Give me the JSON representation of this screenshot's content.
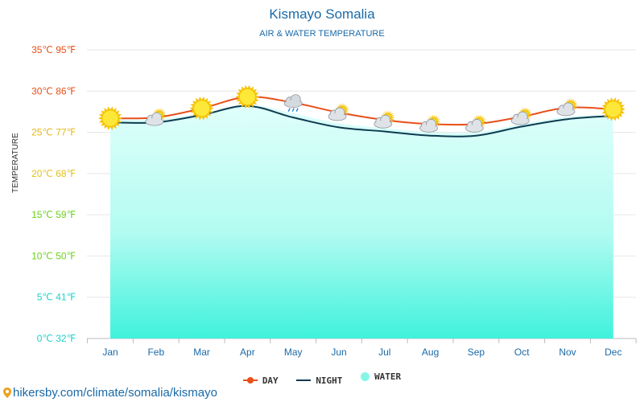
{
  "title": "Kismayo Somalia",
  "subtitle": "AIR & WATER TEMPERATURE",
  "ylabel": "TEMPERATURE",
  "watermark": "hikersby.com/climate/somalia/kismayo",
  "legend": [
    {
      "key": "day",
      "label": "DAY",
      "color": "#e8501a"
    },
    {
      "key": "night",
      "label": "NIGHT",
      "color": "#0d3b4f"
    },
    {
      "key": "water",
      "label": "WATER",
      "color": "#86f5e8"
    }
  ],
  "chart_data": {
    "type": "line",
    "categories": [
      "Jan",
      "Feb",
      "Mar",
      "Apr",
      "May",
      "Jun",
      "Jul",
      "Aug",
      "Sep",
      "Oct",
      "Nov",
      "Dec"
    ],
    "series": [
      {
        "name": "DAY",
        "values": [
          26.7,
          26.8,
          27.9,
          29.3,
          28.6,
          27.4,
          26.5,
          26.0,
          26.0,
          26.9,
          28.0,
          27.8
        ],
        "color": "#e8501a"
      },
      {
        "name": "NIGHT",
        "values": [
          26.2,
          26.2,
          27.1,
          28.2,
          26.8,
          25.6,
          25.1,
          24.6,
          24.6,
          25.7,
          26.6,
          27.0
        ],
        "color": "#0d3b4f"
      },
      {
        "name": "WATER",
        "values": [
          26.6,
          26.6,
          27.3,
          28.4,
          27.3,
          26.1,
          25.5,
          25.0,
          25.0,
          26.0,
          26.9,
          27.1
        ],
        "color": "#86f5e8"
      }
    ],
    "weather_icons": [
      "sun",
      "partly-cloudy",
      "sun",
      "sun",
      "rain",
      "partly-cloudy",
      "partly-cloudy",
      "partly-cloudy",
      "partly-cloudy",
      "partly-cloudy",
      "partly-cloudy",
      "sun"
    ],
    "yticks": [
      {
        "value": 0,
        "label": "0℃ 32℉",
        "color": "#1ed0c8"
      },
      {
        "value": 5,
        "label": "5℃ 41℉",
        "color": "#1ed0c8"
      },
      {
        "value": 10,
        "label": "10℃ 50℉",
        "color": "#6cd21c"
      },
      {
        "value": 15,
        "label": "15℃ 59℉",
        "color": "#6cd21c"
      },
      {
        "value": 20,
        "label": "20℃ 68℉",
        "color": "#e6c21a"
      },
      {
        "value": 25,
        "label": "25℃ 77℉",
        "color": "#e6b81a"
      },
      {
        "value": 30,
        "label": "30℃ 86℉",
        "color": "#e8501a"
      },
      {
        "value": 35,
        "label": "35℃ 95℉",
        "color": "#e8501a"
      }
    ],
    "ylim": [
      0,
      35
    ],
    "grid": true,
    "legend_position": "bottom"
  }
}
